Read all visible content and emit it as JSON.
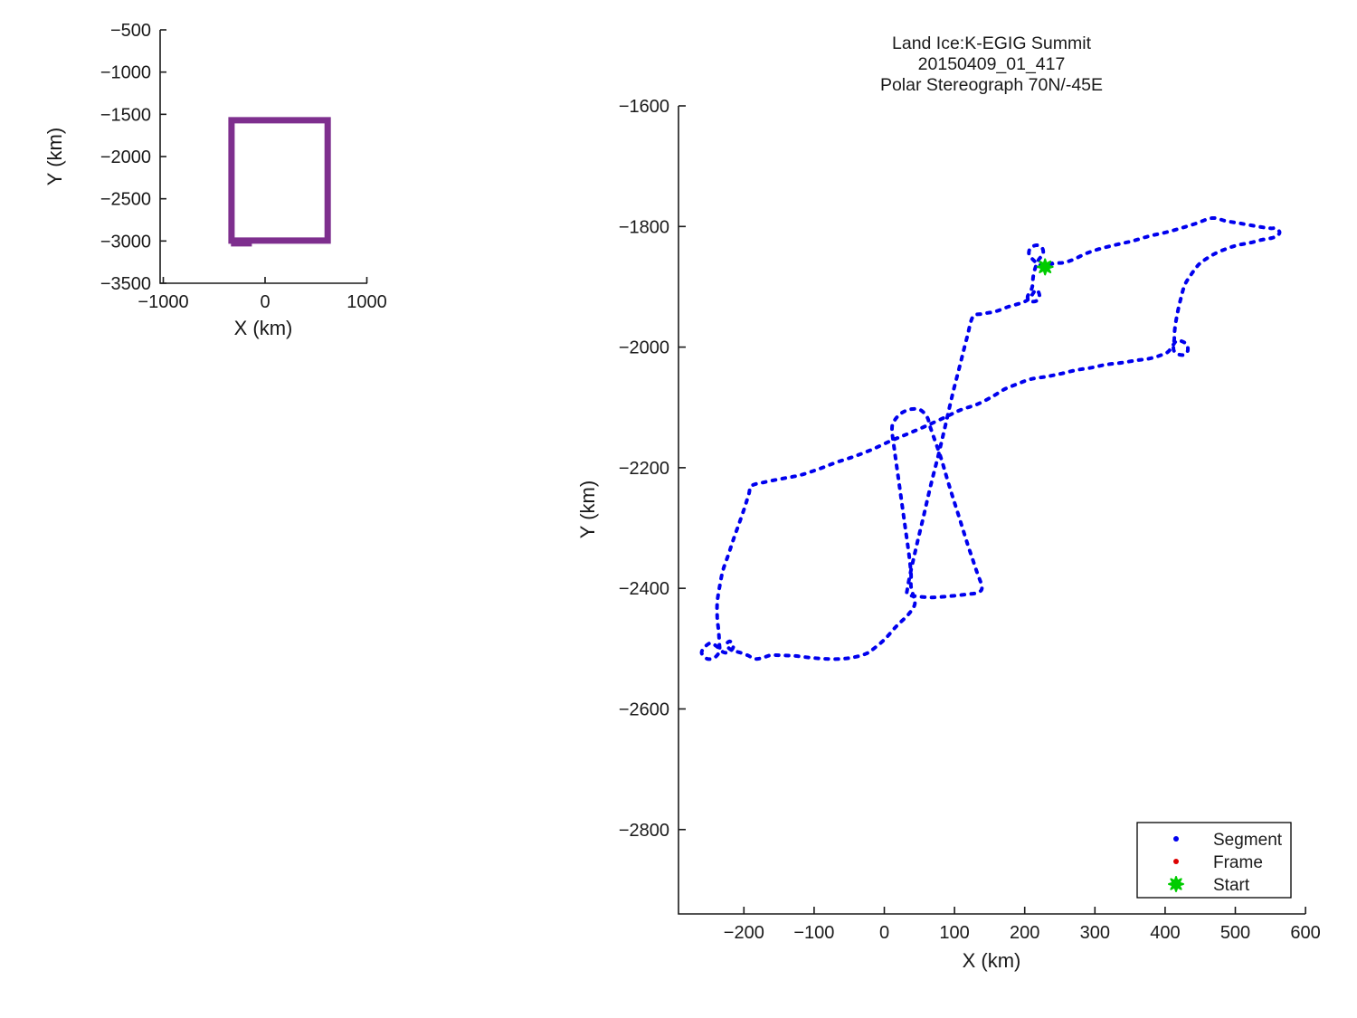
{
  "ui": {
    "overview": {
      "xlabel": "X (km)",
      "ylabel": "Y (km)"
    },
    "main": {
      "title_lines": [
        "Land Ice:K-EGIG Summit",
        "20150409_01_417",
        "Polar Stereograph 70N/-45E"
      ],
      "xlabel": "X (km)",
      "ylabel": "Y (km)",
      "legend": {
        "items": [
          {
            "label": "Segment"
          },
          {
            "label": "Frame"
          },
          {
            "label": "Start"
          }
        ]
      }
    },
    "colors": {
      "segment": "#0000EE",
      "frame": "#DD0000",
      "start": "#00CC00",
      "coverage_box": "#7E2F8E",
      "axis": "#1a1a1a"
    }
  },
  "chart_data": [
    {
      "id": "overview",
      "type": "line",
      "title": "",
      "xlabel": "X (km)",
      "ylabel": "Y (km)",
      "x_ticks": [
        -1000,
        0,
        1000
      ],
      "y_ticks": [
        -500,
        -1000,
        -1500,
        -2000,
        -2500,
        -3000,
        -3500
      ],
      "xlim": [
        -1031,
        1004
      ],
      "ylim": [
        -3500,
        -500
      ],
      "grid": false,
      "series": [
        {
          "name": "coverage-box",
          "color": "#7E2F8E",
          "linewidth": 7,
          "closed": true,
          "points": [
            [
              -330,
              -1570
            ],
            [
              615,
              -1570
            ],
            [
              615,
              -2995
            ],
            [
              -330,
              -2995
            ]
          ]
        },
        {
          "name": "coverage-box-overlap-notch",
          "color": "#7E2F8E",
          "linewidth": 7,
          "closed": false,
          "points": [
            [
              -335,
              -3028
            ],
            [
              -130,
              -3028
            ]
          ]
        }
      ]
    },
    {
      "id": "main",
      "type": "line",
      "title": "Land Ice:K-EGIG Summit | 20150409_01_417 | Polar Stereograph 70N/-45E",
      "xlabel": "X (km)",
      "ylabel": "Y (km)",
      "x_ticks": [
        -200,
        -100,
        0,
        100,
        200,
        300,
        400,
        500,
        600
      ],
      "y_ticks": [
        -1600,
        -1800,
        -2000,
        -2200,
        -2400,
        -2600,
        -2800
      ],
      "xlim": [
        -293,
        600
      ],
      "ylim": [
        -2940,
        -1600
      ],
      "grid": false,
      "legend_position": "bottom-right",
      "legend": [
        {
          "label": "Segment",
          "marker": "dot",
          "color": "#0000EE"
        },
        {
          "label": "Frame",
          "marker": "dot",
          "color": "#DD0000"
        },
        {
          "label": "Start",
          "marker": "star",
          "color": "#00CC00"
        }
      ],
      "start_point": [
        229,
        -1867
      ],
      "series": [
        {
          "name": "Segment",
          "color": "#0000EE",
          "style": "dotted",
          "points": [
            [
              239,
              -1861
            ],
            [
              229,
              -1867
            ],
            [
              218,
              -1861
            ],
            [
              211,
              -1854
            ],
            [
              206,
              -1846
            ],
            [
              208,
              -1836
            ],
            [
              217,
              -1831
            ],
            [
              225,
              -1836
            ],
            [
              226,
              -1846
            ],
            [
              220,
              -1855
            ],
            [
              215,
              -1869
            ],
            [
              212,
              -1884
            ],
            [
              211,
              -1899
            ],
            [
              208,
              -1908
            ],
            [
              204,
              -1917
            ],
            [
              209,
              -1924
            ],
            [
              217,
              -1923
            ],
            [
              221,
              -1914
            ],
            [
              216,
              -1905
            ],
            [
              207,
              -1919
            ],
            [
              197,
              -1926
            ],
            [
              177,
              -1933
            ],
            [
              158,
              -1941
            ],
            [
              139,
              -1945
            ],
            [
              126,
              -1950
            ],
            [
              118,
              -1983
            ],
            [
              108,
              -2029
            ],
            [
              97,
              -2079
            ],
            [
              87,
              -2130
            ],
            [
              77,
              -2179
            ],
            [
              66,
              -2230
            ],
            [
              56,
              -2280
            ],
            [
              46,
              -2329
            ],
            [
              38,
              -2370
            ],
            [
              33,
              -2400
            ],
            [
              33,
              -2410
            ],
            [
              44,
              -2413
            ],
            [
              68,
              -2415
            ],
            [
              93,
              -2413
            ],
            [
              117,
              -2410
            ],
            [
              133,
              -2407
            ],
            [
              139,
              -2398
            ],
            [
              131,
              -2370
            ],
            [
              119,
              -2328
            ],
            [
              106,
              -2280
            ],
            [
              93,
              -2232
            ],
            [
              81,
              -2185
            ],
            [
              70,
              -2148
            ],
            [
              65,
              -2131
            ],
            [
              61,
              -2116
            ],
            [
              51,
              -2104
            ],
            [
              38,
              -2103
            ],
            [
              25,
              -2109
            ],
            [
              15,
              -2121
            ],
            [
              11,
              -2136
            ],
            [
              15,
              -2175
            ],
            [
              20,
              -2217
            ],
            [
              25,
              -2259
            ],
            [
              30,
              -2301
            ],
            [
              35,
              -2343
            ],
            [
              38,
              -2376
            ],
            [
              38,
              -2397
            ],
            [
              42,
              -2415
            ],
            [
              43,
              -2428
            ],
            [
              33,
              -2445
            ],
            [
              17,
              -2463
            ],
            [
              1,
              -2484
            ],
            [
              -15,
              -2500
            ],
            [
              -25,
              -2508
            ],
            [
              -42,
              -2514
            ],
            [
              -61,
              -2517
            ],
            [
              -83,
              -2517
            ],
            [
              -105,
              -2515
            ],
            [
              -128,
              -2512
            ],
            [
              -149,
              -2511
            ],
            [
              -162,
              -2511
            ],
            [
              -173,
              -2515
            ],
            [
              -184,
              -2517
            ],
            [
              -195,
              -2511
            ],
            [
              -207,
              -2506
            ],
            [
              -217,
              -2503
            ],
            [
              -225,
              -2494
            ],
            [
              -220,
              -2488
            ],
            [
              -215,
              -2496
            ],
            [
              -220,
              -2505
            ],
            [
              -229,
              -2506
            ],
            [
              -239,
              -2496
            ],
            [
              -248,
              -2491
            ],
            [
              -257,
              -2499
            ],
            [
              -260,
              -2508
            ],
            [
              -252,
              -2517
            ],
            [
              -242,
              -2515
            ],
            [
              -235,
              -2505
            ],
            [
              -235,
              -2491
            ],
            [
              -236,
              -2472
            ],
            [
              -238,
              -2448
            ],
            [
              -238,
              -2424
            ],
            [
              -235,
              -2400
            ],
            [
              -230,
              -2371
            ],
            [
              -222,
              -2344
            ],
            [
              -215,
              -2319
            ],
            [
              -207,
              -2293
            ],
            [
              -199,
              -2266
            ],
            [
              -193,
              -2244
            ],
            [
              -189,
              -2230
            ],
            [
              -171,
              -2224
            ],
            [
              -145,
              -2218
            ],
            [
              -119,
              -2212
            ],
            [
              -93,
              -2202
            ],
            [
              -68,
              -2191
            ],
            [
              -42,
              -2181
            ],
            [
              -16,
              -2169
            ],
            [
              10,
              -2155
            ],
            [
              35,
              -2143
            ],
            [
              61,
              -2130
            ],
            [
              87,
              -2116
            ],
            [
              109,
              -2104
            ],
            [
              132,
              -2095
            ],
            [
              154,
              -2082
            ],
            [
              171,
              -2070
            ],
            [
              190,
              -2061
            ],
            [
              209,
              -2053
            ],
            [
              231,
              -2049
            ],
            [
              252,
              -2044
            ],
            [
              274,
              -2038
            ],
            [
              296,
              -2034
            ],
            [
              316,
              -2029
            ],
            [
              338,
              -2026
            ],
            [
              359,
              -2022
            ],
            [
              378,
              -2019
            ],
            [
              395,
              -2013
            ],
            [
              404,
              -2008
            ],
            [
              410,
              -1999
            ],
            [
              416,
              -1990
            ],
            [
              423,
              -1990
            ],
            [
              431,
              -1996
            ],
            [
              432,
              -2007
            ],
            [
              426,
              -2013
            ],
            [
              417,
              -2011
            ],
            [
              412,
              -2004
            ],
            [
              413,
              -1987
            ],
            [
              414,
              -1968
            ],
            [
              417,
              -1947
            ],
            [
              422,
              -1921
            ],
            [
              428,
              -1897
            ],
            [
              438,
              -1878
            ],
            [
              448,
              -1863
            ],
            [
              458,
              -1854
            ],
            [
              471,
              -1845
            ],
            [
              487,
              -1837
            ],
            [
              503,
              -1831
            ],
            [
              521,
              -1827
            ],
            [
              538,
              -1822
            ],
            [
              552,
              -1819
            ],
            [
              560,
              -1815
            ],
            [
              563,
              -1809
            ],
            [
              557,
              -1803
            ],
            [
              550,
              -1803
            ],
            [
              532,
              -1800
            ],
            [
              508,
              -1795
            ],
            [
              487,
              -1791
            ],
            [
              467,
              -1786
            ],
            [
              444,
              -1795
            ],
            [
              422,
              -1803
            ],
            [
              400,
              -1810
            ],
            [
              377,
              -1816
            ],
            [
              354,
              -1824
            ],
            [
              331,
              -1830
            ],
            [
              307,
              -1837
            ],
            [
              287,
              -1845
            ],
            [
              269,
              -1855
            ],
            [
              255,
              -1860
            ],
            [
              243,
              -1861
            ],
            [
              233,
              -1864
            ]
          ]
        }
      ]
    }
  ]
}
